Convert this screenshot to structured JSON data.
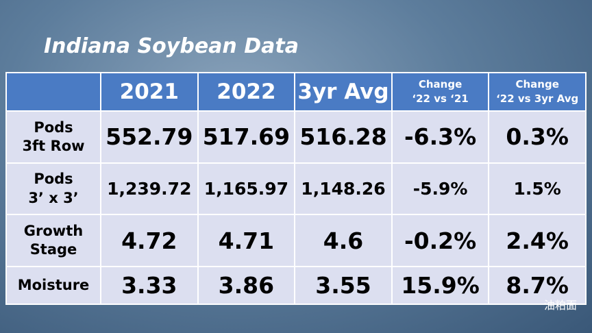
{
  "title": "Indiana Soybean Data",
  "table": {
    "header": [
      [
        "2021"
      ],
      [
        "2022"
      ],
      [
        "3yr Avg"
      ],
      [
        "Change",
        "‘22 vs ‘21"
      ],
      [
        "Change",
        "‘22 vs 3yr Avg"
      ]
    ],
    "rows": [
      {
        "label": [
          "Pods",
          "3ft Row"
        ],
        "cells": [
          "552.79",
          "517.69",
          "516.28",
          "-6.3%",
          "0.3%"
        ]
      },
      {
        "label": [
          "Pods",
          "3’ x 3’"
        ],
        "cells": [
          "1,239.72",
          "1,165.97",
          "1,148.26",
          "-5.9%",
          "1.5%"
        ]
      },
      {
        "label": [
          "Growth",
          "Stage"
        ],
        "cells": [
          "4.72",
          "4.71",
          "4.6",
          "-0.2%",
          "2.4%"
        ]
      },
      {
        "label": [
          "Moisture"
        ],
        "cells": [
          "3.33",
          "3.86",
          "3.55",
          "15.9%",
          "8.7%"
        ]
      }
    ]
  },
  "watermark": "油粕面"
}
